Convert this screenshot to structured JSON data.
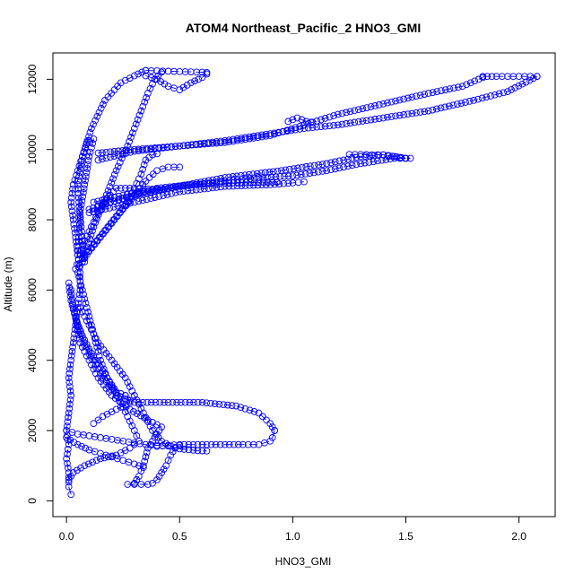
{
  "chart_data": {
    "type": "scatter",
    "title": "ATOM4 Northeast_Pacific_2 HNO3_GMI",
    "xlabel": "HNO3_GMI",
    "ylabel": "Altitude (m)",
    "xlim": [
      -0.06,
      2.16
    ],
    "ylim": [
      -450,
      12750
    ],
    "xticks": [
      0.0,
      0.5,
      1.0,
      1.5,
      2.0
    ],
    "xtick_labels": [
      "0.0",
      "0.5",
      "1.0",
      "1.5",
      "2.0"
    ],
    "yticks": [
      0,
      2000,
      4000,
      6000,
      8000,
      10000,
      12000
    ],
    "ytick_labels": [
      "0",
      "2000",
      "4000",
      "6000",
      "8000",
      "10000",
      "12000"
    ],
    "grid": false,
    "legend": "none",
    "marker": "open-circle",
    "color": "#0000ff",
    "series": [
      {
        "points": [
          [
            0.02,
            180
          ],
          [
            0.01,
            400
          ],
          [
            0.01,
            800
          ],
          [
            0.0,
            1200
          ],
          [
            0.01,
            1600
          ],
          [
            0.0,
            2000
          ],
          [
            0.01,
            2500
          ],
          [
            0.02,
            3000
          ],
          [
            0.01,
            3500
          ],
          [
            0.02,
            4000
          ],
          [
            0.03,
            4500
          ],
          [
            0.04,
            5000
          ],
          [
            0.05,
            5500
          ],
          [
            0.06,
            6000
          ],
          [
            0.06,
            6500
          ],
          [
            0.05,
            7000
          ],
          [
            0.04,
            7500
          ],
          [
            0.03,
            8000
          ],
          [
            0.02,
            8500
          ],
          [
            0.03,
            9000
          ],
          [
            0.05,
            9400
          ],
          [
            0.07,
            9800
          ],
          [
            0.09,
            10200
          ],
          [
            0.1,
            10250
          ],
          [
            0.12,
            10300
          ],
          [
            0.1,
            9800
          ],
          [
            0.08,
            9000
          ],
          [
            0.06,
            8200
          ],
          [
            0.07,
            7400
          ],
          [
            0.08,
            6800
          ]
        ]
      },
      {
        "points": [
          [
            0.04,
            6600
          ],
          [
            0.06,
            7000
          ],
          [
            0.08,
            7400
          ],
          [
            0.11,
            7800
          ],
          [
            0.14,
            8200
          ],
          [
            0.18,
            8600
          ],
          [
            0.22,
            8900
          ],
          [
            0.28,
            8900
          ],
          [
            0.34,
            8880
          ],
          [
            0.4,
            8870
          ],
          [
            0.42,
            8860
          ]
        ]
      },
      {
        "points": [
          [
            0.06,
            6700
          ],
          [
            0.1,
            7100
          ],
          [
            0.15,
            7500
          ],
          [
            0.2,
            7900
          ],
          [
            0.25,
            8300
          ],
          [
            0.3,
            8700
          ],
          [
            0.35,
            9100
          ],
          [
            0.4,
            9400
          ],
          [
            0.45,
            9500
          ],
          [
            0.5,
            9500
          ]
        ]
      },
      {
        "points": [
          [
            0.07,
            6900
          ],
          [
            0.12,
            7300
          ],
          [
            0.17,
            7700
          ],
          [
            0.22,
            8100
          ],
          [
            0.27,
            8500
          ],
          [
            0.3,
            8900
          ],
          [
            0.33,
            9300
          ],
          [
            0.35,
            9700
          ],
          [
            0.38,
            9850
          ],
          [
            0.4,
            9880
          ]
        ]
      },
      {
        "points": [
          [
            0.08,
            7000
          ],
          [
            0.12,
            7800
          ],
          [
            0.17,
            8600
          ],
          [
            0.22,
            9400
          ],
          [
            0.27,
            10100
          ],
          [
            0.3,
            10600
          ],
          [
            0.33,
            11100
          ],
          [
            0.36,
            11600
          ],
          [
            0.39,
            12000
          ],
          [
            0.42,
            12200
          ]
        ]
      },
      {
        "points": [
          [
            0.05,
            7000
          ],
          [
            0.06,
            8000
          ],
          [
            0.05,
            9000
          ],
          [
            0.07,
            9800
          ],
          [
            0.11,
            10600
          ],
          [
            0.17,
            11400
          ],
          [
            0.24,
            11900
          ],
          [
            0.3,
            12100
          ],
          [
            0.35,
            12250
          ]
        ]
      },
      {
        "points": [
          [
            0.35,
            12250
          ],
          [
            0.4,
            12240
          ],
          [
            0.45,
            12230
          ],
          [
            0.5,
            12220
          ],
          [
            0.55,
            12210
          ],
          [
            0.6,
            12200
          ],
          [
            0.62,
            12190
          ]
        ]
      },
      {
        "points": [
          [
            0.35,
            12100
          ],
          [
            0.4,
            12000
          ],
          [
            0.45,
            11800
          ],
          [
            0.5,
            11700
          ],
          [
            0.55,
            11900
          ],
          [
            0.6,
            12050
          ],
          [
            0.62,
            12150
          ]
        ]
      },
      {
        "points": [
          [
            0.14,
            9900
          ],
          [
            0.3,
            10000
          ],
          [
            0.5,
            10100
          ],
          [
            0.7,
            10200
          ],
          [
            0.9,
            10400
          ],
          [
            1.05,
            10700
          ],
          [
            1.2,
            11000
          ],
          [
            1.4,
            11300
          ],
          [
            1.6,
            11600
          ],
          [
            1.75,
            11800
          ],
          [
            1.84,
            12050
          ]
        ]
      },
      {
        "points": [
          [
            1.84,
            12080
          ],
          [
            1.9,
            12080
          ],
          [
            1.95,
            12080
          ],
          [
            2.0,
            12080
          ],
          [
            2.05,
            12080
          ],
          [
            2.08,
            12080
          ]
        ]
      },
      {
        "points": [
          [
            0.14,
            9700
          ],
          [
            0.3,
            9950
          ],
          [
            0.5,
            10100
          ],
          [
            0.7,
            10250
          ],
          [
            0.9,
            10450
          ],
          [
            1.05,
            10600
          ],
          [
            1.2,
            10700
          ],
          [
            1.4,
            10900
          ],
          [
            1.6,
            11100
          ],
          [
            1.8,
            11400
          ],
          [
            1.95,
            11650
          ],
          [
            2.08,
            12080
          ]
        ]
      },
      {
        "points": [
          [
            0.98,
            10800
          ],
          [
            1.0,
            10850
          ],
          [
            1.02,
            10900
          ],
          [
            1.04,
            10850
          ],
          [
            1.06,
            10800
          ],
          [
            1.08,
            10780
          ]
        ]
      },
      {
        "points": [
          [
            0.12,
            8500
          ],
          [
            0.25,
            8700
          ],
          [
            0.45,
            8900
          ],
          [
            0.7,
            9200
          ],
          [
            0.95,
            9400
          ],
          [
            1.15,
            9600
          ],
          [
            1.3,
            9800
          ],
          [
            1.4,
            9850
          ],
          [
            1.5,
            9750
          ]
        ]
      },
      {
        "points": [
          [
            0.14,
            8400
          ],
          [
            0.3,
            8700
          ],
          [
            0.5,
            8950
          ],
          [
            0.7,
            9100
          ],
          [
            0.85,
            9200
          ],
          [
            1.0,
            9250
          ],
          [
            1.15,
            9400
          ],
          [
            1.3,
            9600
          ],
          [
            1.45,
            9750
          ],
          [
            1.52,
            9750
          ]
        ]
      },
      {
        "points": [
          [
            1.25,
            9860
          ],
          [
            1.3,
            9860
          ],
          [
            1.35,
            9850
          ],
          [
            1.4,
            9850
          ],
          [
            1.45,
            9800
          ],
          [
            1.5,
            9750
          ]
        ]
      },
      {
        "points": [
          [
            0.1,
            8300
          ],
          [
            0.25,
            8600
          ],
          [
            0.4,
            8900
          ],
          [
            0.55,
            9000
          ],
          [
            0.7,
            9050
          ],
          [
            0.85,
            9070
          ],
          [
            0.93,
            9070
          ]
        ]
      },
      {
        "points": [
          [
            0.1,
            8200
          ],
          [
            0.3,
            8500
          ],
          [
            0.5,
            8800
          ],
          [
            0.7,
            8950
          ],
          [
            0.9,
            9000
          ],
          [
            1.0,
            9050
          ],
          [
            1.05,
            9080
          ]
        ]
      },
      {
        "points": [
          [
            0.05,
            6500
          ],
          [
            0.07,
            6000
          ],
          [
            0.09,
            5500
          ],
          [
            0.11,
            5000
          ],
          [
            0.13,
            4500
          ],
          [
            0.15,
            4000
          ],
          [
            0.18,
            3500
          ],
          [
            0.22,
            3000
          ],
          [
            0.3,
            2800
          ],
          [
            0.45,
            2800
          ],
          [
            0.6,
            2800
          ],
          [
            0.75,
            2700
          ],
          [
            0.85,
            2500
          ],
          [
            0.9,
            2200
          ],
          [
            0.92,
            2000
          ]
        ]
      },
      {
        "points": [
          [
            0.92,
            2000
          ],
          [
            0.91,
            1800
          ],
          [
            0.9,
            1700
          ],
          [
            0.85,
            1600
          ],
          [
            0.78,
            1600
          ],
          [
            0.7,
            1600
          ],
          [
            0.6,
            1600
          ],
          [
            0.5,
            1600
          ],
          [
            0.45,
            1580
          ],
          [
            0.4,
            1550
          ]
        ]
      },
      {
        "points": [
          [
            0.06,
            5500
          ],
          [
            0.1,
            5000
          ],
          [
            0.14,
            4500
          ],
          [
            0.2,
            4000
          ],
          [
            0.26,
            3500
          ],
          [
            0.3,
            3000
          ],
          [
            0.34,
            2500
          ],
          [
            0.38,
            2000
          ],
          [
            0.42,
            1700
          ],
          [
            0.46,
            1560
          ],
          [
            0.5,
            1480
          ],
          [
            0.58,
            1430
          ],
          [
            0.62,
            1420
          ]
        ]
      },
      {
        "points": [
          [
            0.04,
            5200
          ],
          [
            0.06,
            4500
          ],
          [
            0.1,
            4000
          ],
          [
            0.14,
            3500
          ],
          [
            0.2,
            3000
          ],
          [
            0.28,
            2600
          ],
          [
            0.36,
            2300
          ],
          [
            0.42,
            2100
          ],
          [
            0.4,
            1900
          ],
          [
            0.36,
            1500
          ],
          [
            0.34,
            1000
          ],
          [
            0.32,
            700
          ],
          [
            0.3,
            500
          ]
        ]
      },
      {
        "points": [
          [
            0.27,
            470
          ],
          [
            0.3,
            470
          ],
          [
            0.33,
            470
          ],
          [
            0.36,
            470
          ],
          [
            0.38,
            500
          ],
          [
            0.4,
            600
          ],
          [
            0.42,
            800
          ],
          [
            0.44,
            1000
          ],
          [
            0.46,
            1300
          ],
          [
            0.48,
            1500
          ],
          [
            0.5,
            1580
          ]
        ]
      },
      {
        "points": [
          [
            0.02,
            6000
          ],
          [
            0.03,
            5500
          ],
          [
            0.05,
            5000
          ],
          [
            0.08,
            4500
          ],
          [
            0.12,
            4000
          ],
          [
            0.16,
            3500
          ],
          [
            0.22,
            3100
          ],
          [
            0.26,
            3000
          ],
          [
            0.28,
            2800
          ],
          [
            0.22,
            2600
          ],
          [
            0.16,
            2400
          ],
          [
            0.12,
            2200
          ]
        ]
      },
      {
        "points": [
          [
            0.01,
            6200
          ],
          [
            0.02,
            5700
          ],
          [
            0.04,
            5200
          ],
          [
            0.07,
            4700
          ],
          [
            0.11,
            4200
          ],
          [
            0.16,
            3700
          ],
          [
            0.21,
            3200
          ],
          [
            0.24,
            2800
          ],
          [
            0.27,
            2400
          ],
          [
            0.3,
            2000
          ],
          [
            0.32,
            1700
          ],
          [
            0.28,
            1500
          ],
          [
            0.22,
            1300
          ],
          [
            0.15,
            1200
          ],
          [
            0.08,
            1000
          ],
          [
            0.03,
            800
          ],
          [
            0.01,
            600
          ]
        ]
      },
      {
        "points": [
          [
            0.0,
            2000
          ],
          [
            0.05,
            1900
          ],
          [
            0.1,
            1850
          ],
          [
            0.15,
            1800
          ],
          [
            0.2,
            1750
          ],
          [
            0.25,
            1700
          ],
          [
            0.3,
            1650
          ],
          [
            0.35,
            1600
          ],
          [
            0.4,
            1580
          ],
          [
            0.45,
            1560
          ]
        ]
      },
      {
        "points": [
          [
            0.0,
            1800
          ],
          [
            0.05,
            1600
          ],
          [
            0.1,
            1450
          ],
          [
            0.15,
            1350
          ],
          [
            0.2,
            1250
          ],
          [
            0.25,
            1150
          ],
          [
            0.3,
            1050
          ],
          [
            0.34,
            950
          ]
        ]
      }
    ]
  }
}
